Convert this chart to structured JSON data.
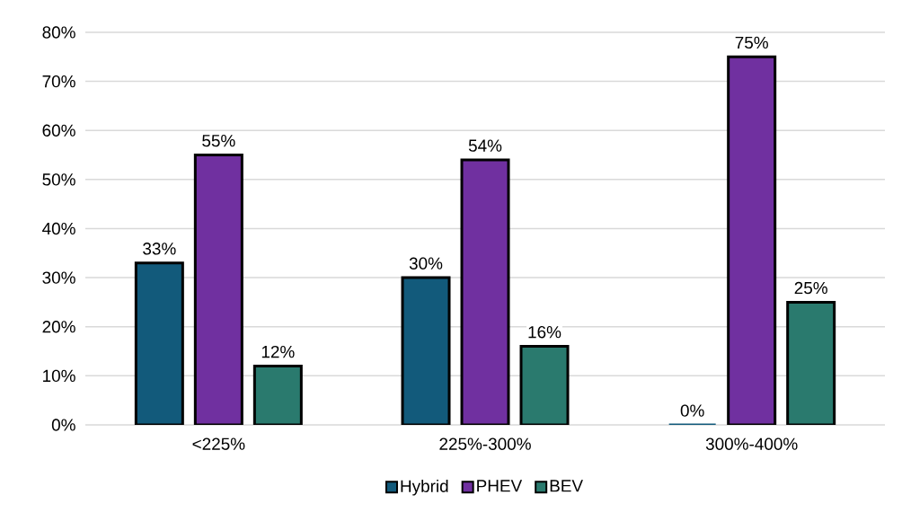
{
  "chart_data": {
    "type": "bar",
    "categories": [
      "<225%",
      "225%-300%",
      "300%-400%"
    ],
    "series": [
      {
        "name": "Hybrid",
        "color": "#125a7b",
        "values": [
          33,
          30,
          0
        ],
        "value_labels": [
          "33%",
          "30%",
          "0%"
        ]
      },
      {
        "name": "PHEV",
        "color": "#7030a0",
        "values": [
          55,
          54,
          75
        ],
        "value_labels": [
          "55%",
          "54%",
          "75%"
        ]
      },
      {
        "name": "BEV",
        "color": "#2a7a6e",
        "values": [
          12,
          16,
          25
        ],
        "value_labels": [
          "12%",
          "16%",
          "25%"
        ]
      }
    ],
    "ylim": [
      0,
      80
    ],
    "yticks": [
      {
        "value": 0,
        "label": "0%"
      },
      {
        "value": 10,
        "label": "10%"
      },
      {
        "value": 20,
        "label": "20%"
      },
      {
        "value": 30,
        "label": "30%"
      },
      {
        "value": 40,
        "label": "40%"
      },
      {
        "value": 50,
        "label": "50%"
      },
      {
        "value": 60,
        "label": "60%"
      },
      {
        "value": 70,
        "label": "70%"
      },
      {
        "value": 80,
        "label": "80%"
      }
    ],
    "grid": "y",
    "legend": "bottom"
  }
}
